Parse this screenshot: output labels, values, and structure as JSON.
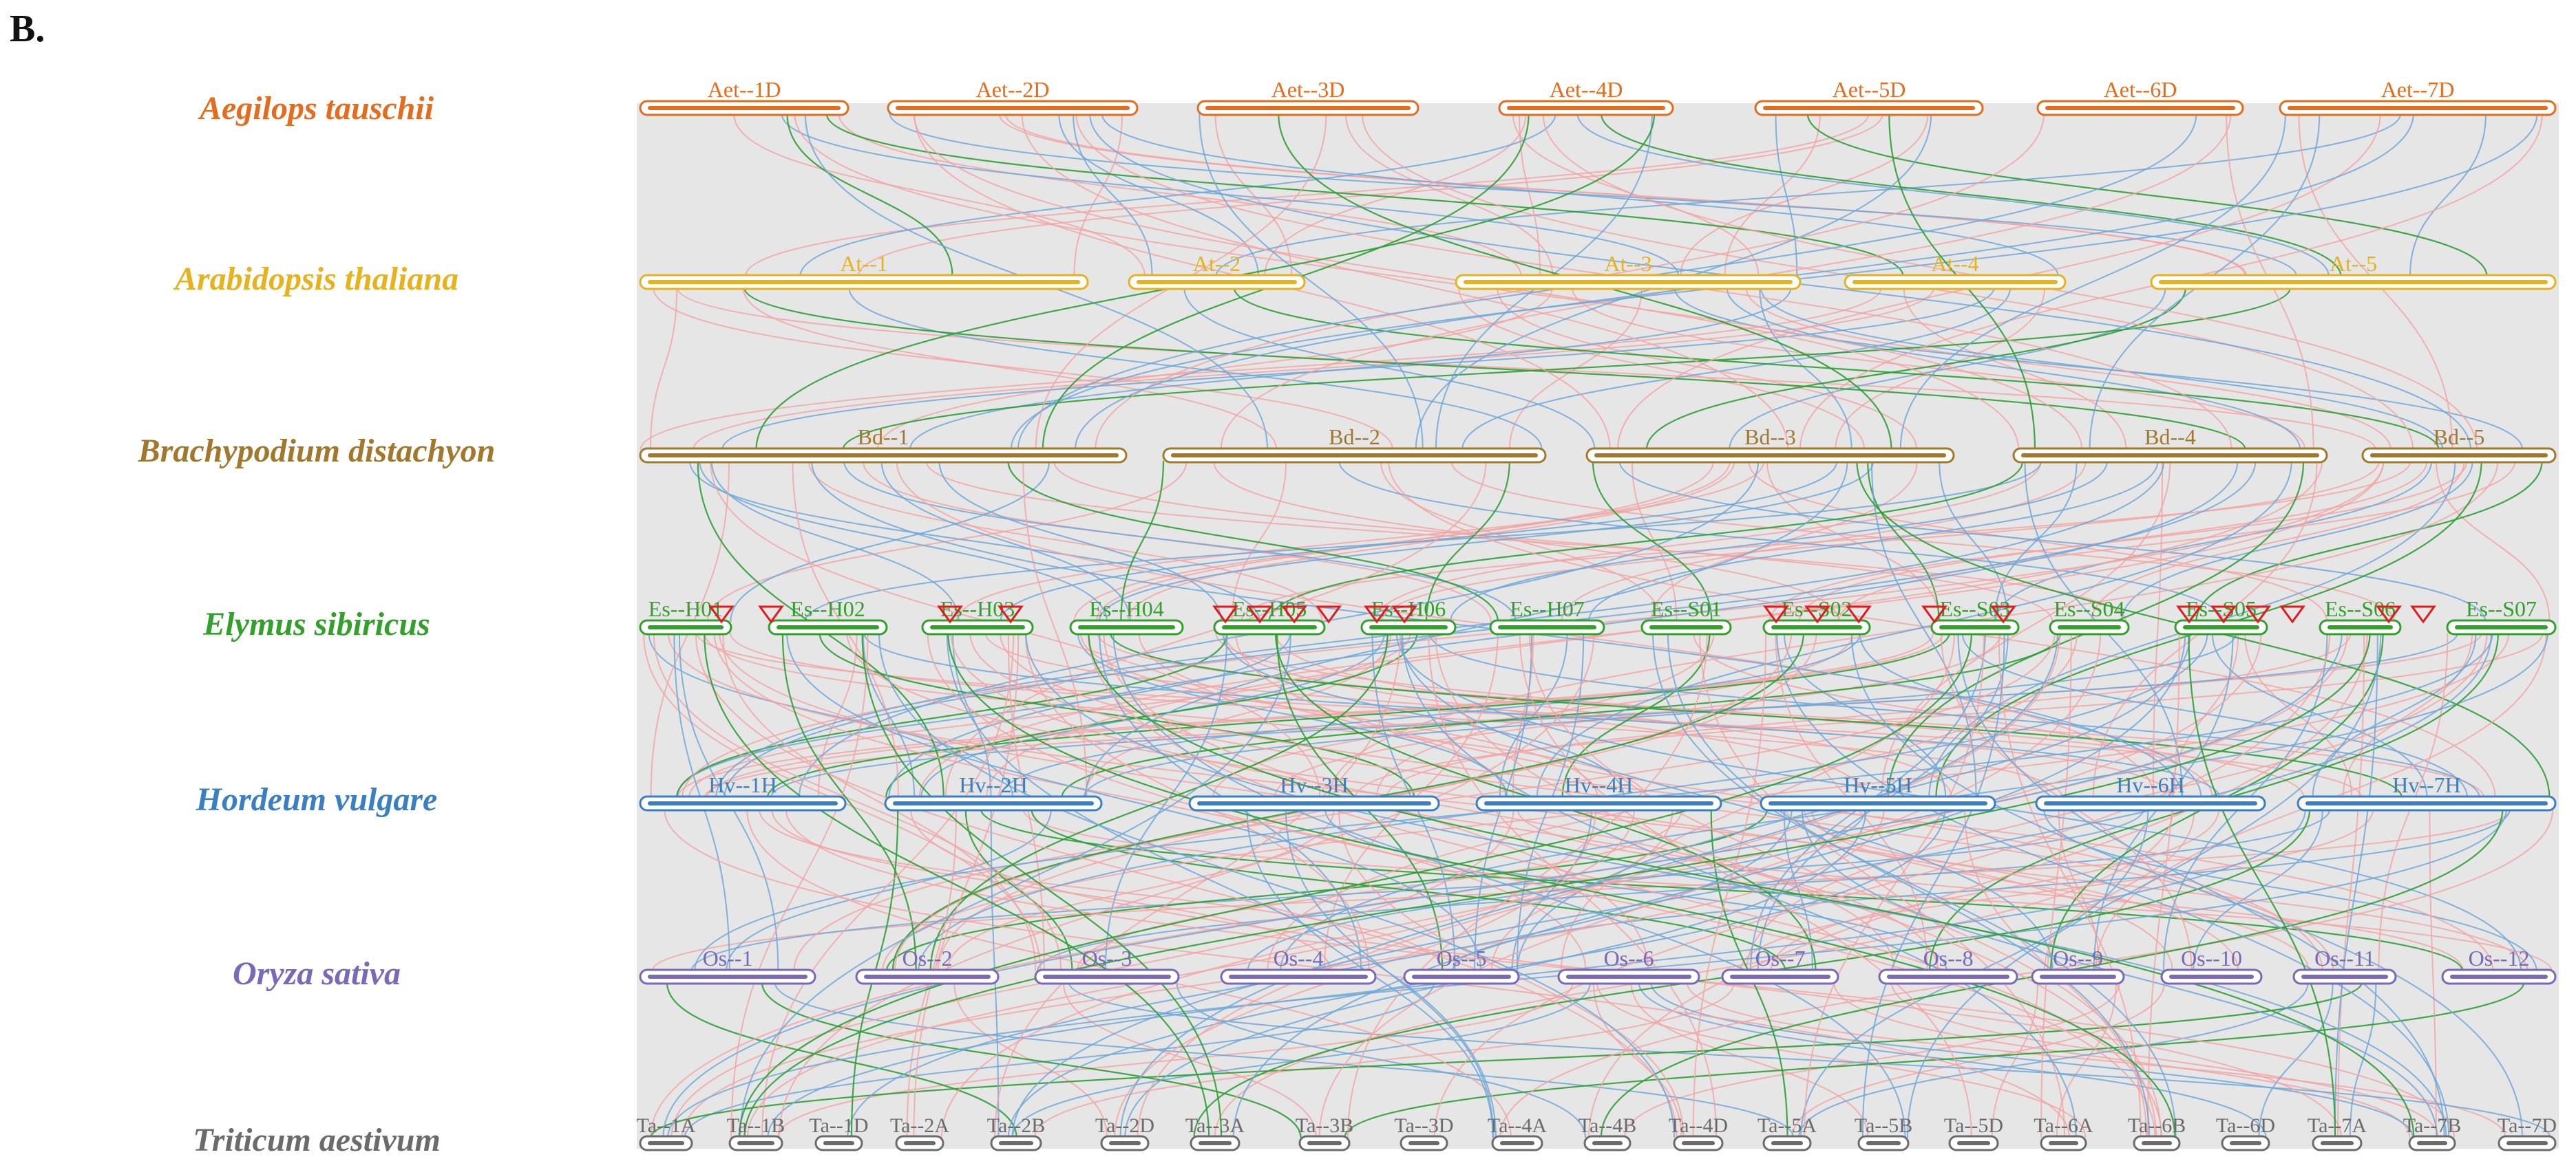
{
  "panel_label": "B.",
  "colors": {
    "Aet": "#e46c1e",
    "At": "#e6b31e",
    "Bd": "#a2782c",
    "Es": "#33a02c",
    "Hv": "#3a7fc1",
    "Os": "#7a68b8",
    "Ta": "#6b6b6b",
    "link_blue": "#6fa7d8",
    "link_pink": "#f4a3a3",
    "link_green": "#2f9f35",
    "marker": "#e31a1c",
    "ribbon": "#e6e6e6"
  },
  "species": [
    {
      "key": "Aet",
      "name": "Aegilops tauschii"
    },
    {
      "key": "At",
      "name": "Arabidopsis thaliana"
    },
    {
      "key": "Bd",
      "name": "Brachypodium distachyon"
    },
    {
      "key": "Es",
      "name": "Elymus sibiricus"
    },
    {
      "key": "Hv",
      "name": "Hordeum vulgare"
    },
    {
      "key": "Os",
      "name": "Oryza sativa"
    },
    {
      "key": "Ta",
      "name": "Triticum aestivum"
    }
  ],
  "chromosomes": {
    "Aet": [
      "Aet--1D",
      "Aet--2D",
      "Aet--3D",
      "Aet--4D",
      "Aet--5D",
      "Aet--6D",
      "Aet--7D"
    ],
    "At": [
      "At--1",
      "At--2",
      "At--3",
      "At--4",
      "At--5"
    ],
    "Bd": [
      "Bd--1",
      "Bd--2",
      "Bd--3",
      "Bd--4",
      "Bd--5"
    ],
    "Es": [
      "Es--H01",
      "Es--H02",
      "Es--H03",
      "Es--H04",
      "Es--H05",
      "Es--H06",
      "Es--H07",
      "Es--S01",
      "Es--S02",
      "Es--S03",
      "Es--S04",
      "Es--S05",
      "Es--S06",
      "Es--S07"
    ],
    "Hv": [
      "Hv--1H",
      "Hv--2H",
      "Hv--3H",
      "Hv--4H",
      "Hv--5H",
      "Hv--6H",
      "Hv--7H"
    ],
    "Os": [
      "Os--1",
      "Os--2",
      "Os--3",
      "Os--4",
      "Os--5",
      "Os--6",
      "Os--7",
      "Os--8",
      "Os--9",
      "Os--10",
      "Os--11",
      "Os--12"
    ],
    "Ta": [
      "Ta--1A",
      "Ta--1B",
      "Ta--1D",
      "Ta--2A",
      "Ta--2B",
      "Ta--2D",
      "Ta--3A",
      "Ta--3B",
      "Ta--3D",
      "Ta--4A",
      "Ta--4B",
      "Ta--4D",
      "Ta--5A",
      "Ta--5B",
      "Ta--5D",
      "Ta--6A",
      "Ta--6B",
      "Ta--6D",
      "Ta--7A",
      "Ta--7B",
      "Ta--7D"
    ]
  }
}
